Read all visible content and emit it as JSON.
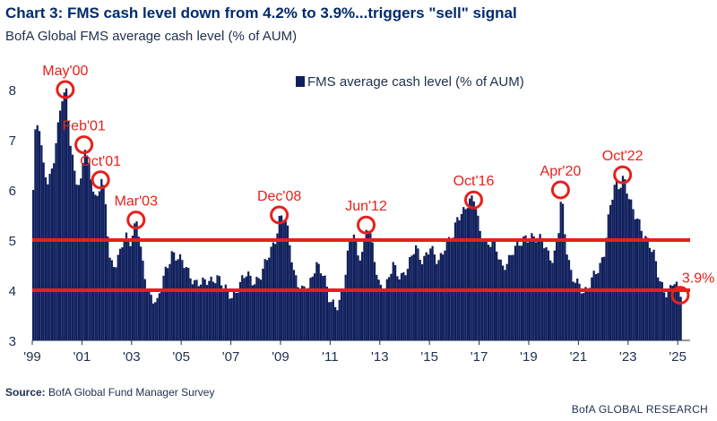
{
  "title": "Chart 3: FMS cash level down from 4.2% to 3.9%...triggers \"sell\" signal",
  "subtitle": "BofA Global FMS average cash level (% of AUM)",
  "source_label": "Source:",
  "source_text": " BofA Global Fund Manager Survey",
  "footer": "BofA GLOBAL RESEARCH",
  "chart_data": {
    "type": "bar",
    "title": "",
    "xlabel": "",
    "ylabel": "",
    "ylim": [
      3,
      8.5
    ],
    "yticks": [
      3,
      4,
      5,
      6,
      7,
      8
    ],
    "xticks": [
      "'99",
      "'01",
      "'03",
      "'05",
      "'07",
      "'09",
      "'11",
      "'13",
      "'15",
      "'17",
      "'19",
      "'21",
      "'23",
      "'25"
    ],
    "xtick_years": [
      1999,
      2001,
      2003,
      2005,
      2007,
      2009,
      2011,
      2013,
      2015,
      2017,
      2019,
      2021,
      2023,
      2025
    ],
    "x_range": [
      1999.0,
      2025.5
    ],
    "legend": {
      "position": "top-center",
      "entries": [
        "FMS average cash level (% of AUM)"
      ]
    },
    "bar_color": "#0f1f5c",
    "threshold_color": "#e8201b",
    "thresholds": [
      5.0,
      4.0
    ],
    "grid": false,
    "series": [
      {
        "name": "FMS average cash level (% of AUM)",
        "anchors": [
          [
            1999.0,
            6.0
          ],
          [
            1999.1,
            7.3
          ],
          [
            1999.25,
            7.2
          ],
          [
            1999.4,
            6.5
          ],
          [
            1999.6,
            6.2
          ],
          [
            1999.8,
            6.5
          ],
          [
            2000.0,
            7.2
          ],
          [
            2000.15,
            7.8
          ],
          [
            2000.33,
            8.0
          ],
          [
            2000.5,
            7.0
          ],
          [
            2000.7,
            6.2
          ],
          [
            2000.9,
            6.0
          ],
          [
            2001.08,
            6.9
          ],
          [
            2001.3,
            6.4
          ],
          [
            2001.55,
            5.7
          ],
          [
            2001.75,
            6.2
          ],
          [
            2001.9,
            5.8
          ],
          [
            2002.1,
            4.6
          ],
          [
            2002.3,
            4.5
          ],
          [
            2002.5,
            4.7
          ],
          [
            2002.7,
            5.1
          ],
          [
            2002.9,
            5.0
          ],
          [
            2003.1,
            5.3
          ],
          [
            2003.18,
            5.4
          ],
          [
            2003.4,
            4.5
          ],
          [
            2003.6,
            4.0
          ],
          [
            2003.8,
            3.9
          ],
          [
            2004.0,
            3.75
          ],
          [
            2004.3,
            4.3
          ],
          [
            2004.6,
            4.8
          ],
          [
            2004.9,
            4.6
          ],
          [
            2005.2,
            4.4
          ],
          [
            2005.5,
            4.2
          ],
          [
            2005.8,
            4.1
          ],
          [
            2006.1,
            4.2
          ],
          [
            2006.4,
            4.3
          ],
          [
            2006.7,
            4.0
          ],
          [
            2007.0,
            3.9
          ],
          [
            2007.3,
            4.1
          ],
          [
            2007.6,
            4.3
          ],
          [
            2007.9,
            4.2
          ],
          [
            2008.2,
            4.3
          ],
          [
            2008.5,
            4.7
          ],
          [
            2008.78,
            5.1
          ],
          [
            2008.95,
            5.5
          ],
          [
            2009.2,
            5.3
          ],
          [
            2009.5,
            4.4
          ],
          [
            2009.8,
            4.0
          ],
          [
            2010.1,
            4.0
          ],
          [
            2010.4,
            4.6
          ],
          [
            2010.7,
            4.3
          ],
          [
            2010.9,
            3.8
          ],
          [
            2011.2,
            3.7
          ],
          [
            2011.5,
            4.0
          ],
          [
            2011.7,
            4.8
          ],
          [
            2011.9,
            5.2
          ],
          [
            2012.1,
            4.7
          ],
          [
            2012.3,
            4.8
          ],
          [
            2012.45,
            5.3
          ],
          [
            2012.7,
            4.8
          ],
          [
            2012.9,
            4.2
          ],
          [
            2013.2,
            4.0
          ],
          [
            2013.5,
            4.5
          ],
          [
            2013.8,
            4.3
          ],
          [
            2014.1,
            4.4
          ],
          [
            2014.4,
            4.9
          ],
          [
            2014.7,
            4.6
          ],
          [
            2015.0,
            4.8
          ],
          [
            2015.3,
            4.6
          ],
          [
            2015.6,
            4.9
          ],
          [
            2015.9,
            5.0
          ],
          [
            2016.1,
            5.5
          ],
          [
            2016.3,
            5.6
          ],
          [
            2016.5,
            5.7
          ],
          [
            2016.78,
            5.8
          ],
          [
            2017.0,
            5.2
          ],
          [
            2017.3,
            4.9
          ],
          [
            2017.6,
            4.9
          ],
          [
            2017.9,
            4.5
          ],
          [
            2018.2,
            4.6
          ],
          [
            2018.5,
            4.9
          ],
          [
            2018.8,
            5.1
          ],
          [
            2019.0,
            5.0
          ],
          [
            2019.3,
            5.0
          ],
          [
            2019.5,
            5.1
          ],
          [
            2019.7,
            4.8
          ],
          [
            2019.95,
            4.5
          ],
          [
            2020.15,
            5.1
          ],
          [
            2020.28,
            6.0
          ],
          [
            2020.45,
            5.0
          ],
          [
            2020.7,
            4.2
          ],
          [
            2020.95,
            4.1
          ],
          [
            2021.2,
            4.0
          ],
          [
            2021.5,
            4.2
          ],
          [
            2021.8,
            4.4
          ],
          [
            2022.0,
            4.8
          ],
          [
            2022.2,
            5.6
          ],
          [
            2022.45,
            6.1
          ],
          [
            2022.6,
            6.0
          ],
          [
            2022.78,
            6.3
          ],
          [
            2022.95,
            6.0
          ],
          [
            2023.2,
            5.5
          ],
          [
            2023.5,
            5.2
          ],
          [
            2023.8,
            5.0
          ],
          [
            2024.0,
            4.7
          ],
          [
            2024.2,
            4.2
          ],
          [
            2024.4,
            4.0
          ],
          [
            2024.6,
            4.0
          ],
          [
            2024.8,
            4.2
          ],
          [
            2024.95,
            4.0
          ],
          [
            2025.1,
            3.9
          ]
        ]
      }
    ],
    "annotations": [
      {
        "label": "May'00",
        "x": 2000.33,
        "y": 8.0
      },
      {
        "label": "Feb'01",
        "x": 2001.08,
        "y": 6.9
      },
      {
        "label": "Oct'01",
        "x": 2001.75,
        "y": 6.2
      },
      {
        "label": "Mar'03",
        "x": 2003.18,
        "y": 5.4
      },
      {
        "label": "Dec'08",
        "x": 2008.95,
        "y": 5.5
      },
      {
        "label": "Jun'12",
        "x": 2012.45,
        "y": 5.3
      },
      {
        "label": "Oct'16",
        "x": 2016.78,
        "y": 5.8
      },
      {
        "label": "Apr'20",
        "x": 2020.28,
        "y": 6.0
      },
      {
        "label": "Oct'22",
        "x": 2022.78,
        "y": 6.3
      },
      {
        "label": "3.9%",
        "x": 2025.1,
        "y": 3.9
      }
    ]
  }
}
